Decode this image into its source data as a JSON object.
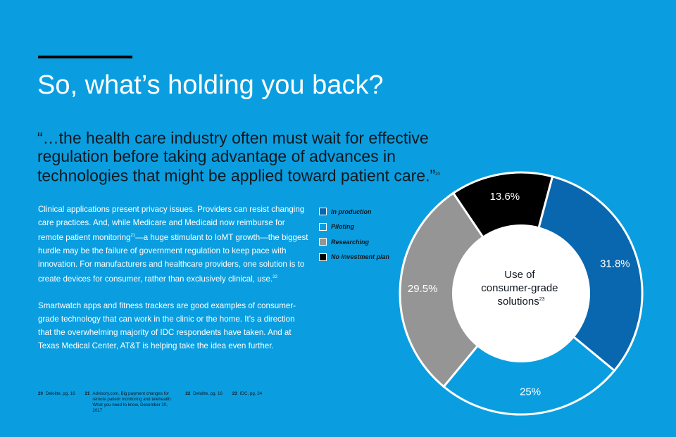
{
  "heading": "So, what’s holding you back?",
  "quote": {
    "text": "“…the health care industry often must wait for effective regulation before taking advantage of advances in technologies that might be applied toward patient care.”",
    "ref": "20"
  },
  "body": {
    "p1_a": "Clinical applications present privacy issues. Providers can resist changing care practices. And, while Medicare and Medicaid now reimburse for remote patient monitoring",
    "p1_ref1": "21",
    "p1_b": "—a huge stimulant to IoMT growth—the biggest hurdle may be the failure of government regulation to keep pace with innovation. For manufacturers and healthcare providers, one solution is to create devices for consumer, rather than exclusively clinical, use.",
    "p1_ref2": "22",
    "p2": "Smartwatch apps and fitness trackers are good examples of consumer-grade technology that can work in the clinic or the home. It’s a direction that the overwhelming majority of IDC respondents have taken. And at Texas Medical Center, AT&T is helping take the idea even further."
  },
  "footnotes": [
    {
      "num": "20",
      "text": "Deloitte, pg. 16"
    },
    {
      "num": "21",
      "text": "Advisory.com, Big payment changes for remote patient monitoring and telehealth: What you need to know, December 20, 2017"
    },
    {
      "num": "22",
      "text": "Deloitte, pg. 16"
    },
    {
      "num": "23",
      "text": "IDC, pg. 24"
    }
  ],
  "chart_data": {
    "type": "pie",
    "donut": true,
    "center_label": [
      "Use of",
      "consumer-grade",
      "solutions"
    ],
    "center_label_ref": "23",
    "series": [
      {
        "name": "In production",
        "value": 31.8,
        "label": "31.8%",
        "color": "#0867ae"
      },
      {
        "name": "Piloting",
        "value": 25,
        "label": "25%",
        "color": "#0a9ee0"
      },
      {
        "name": "Researching",
        "value": 29.5,
        "label": "29.5%",
        "color": "#959595"
      },
      {
        "name": "No investment plan",
        "value": 13.6,
        "label": "13.6%",
        "color": "#000000"
      }
    ]
  },
  "colors": {
    "background": "#0a9ee0",
    "text_dark": "#101820",
    "divider": "#ffffff"
  }
}
